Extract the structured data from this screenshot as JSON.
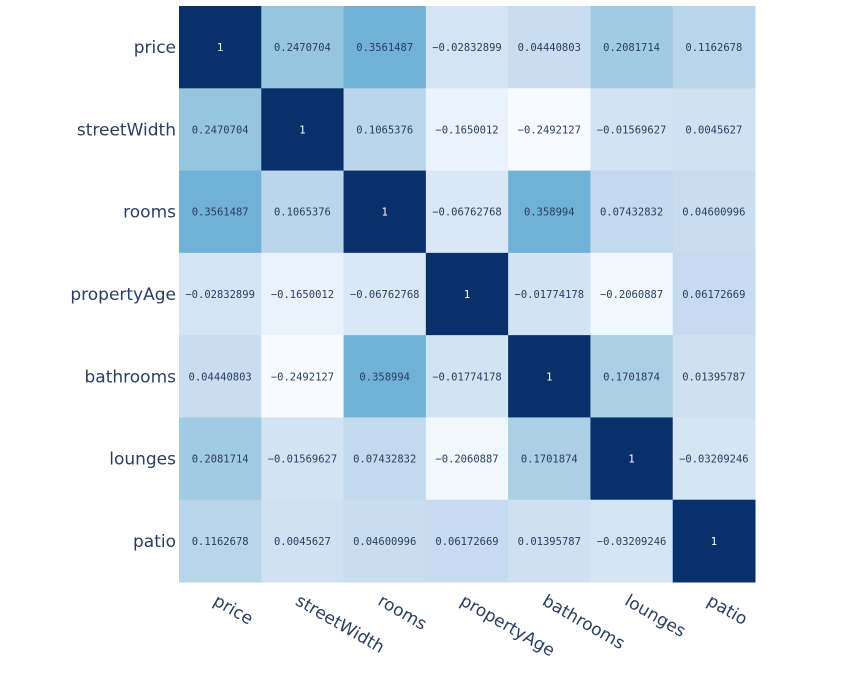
{
  "chart_data": {
    "type": "heatmap",
    "title": "",
    "colorscale": "Blues",
    "colorscale_stops": [
      "#f7fbff",
      "#deebf7",
      "#c6dbef",
      "#9ecae1",
      "#6baed6",
      "#4292c6",
      "#2171b5",
      "#08519c",
      "#08306b"
    ],
    "zmin": -0.2492127,
    "zmax": 1,
    "labels": [
      "price",
      "streetWidth",
      "rooms",
      "propertyAge",
      "bathrooms",
      "lounges",
      "patio"
    ],
    "values": [
      [
        1,
        0.2470704,
        0.3561487,
        -0.02832899,
        0.04440803,
        0.2081714,
        0.1162678
      ],
      [
        0.2470704,
        1,
        0.1065376,
        -0.1650012,
        -0.2492127,
        -0.01569627,
        0.0045627
      ],
      [
        0.3561487,
        0.1065376,
        1,
        -0.06762768,
        0.358994,
        0.07432832,
        0.04600996
      ],
      [
        -0.02832899,
        -0.1650012,
        -0.06762768,
        1,
        -0.01774178,
        -0.2060887,
        0.06172669
      ],
      [
        0.04440803,
        -0.2492127,
        0.358994,
        -0.01774178,
        1,
        0.1701874,
        0.01395787
      ],
      [
        0.2081714,
        -0.01569627,
        0.07432832,
        -0.2060887,
        0.1701874,
        1,
        -0.03209246
      ],
      [
        0.1162678,
        0.0045627,
        0.04600996,
        0.06172669,
        0.01395787,
        -0.03209246,
        1
      ]
    ],
    "text": [
      [
        "1",
        "0.2470704",
        "0.3561487",
        "−0.02832899",
        "0.04440803",
        "0.2081714",
        "0.1162678"
      ],
      [
        "0.2470704",
        "1",
        "0.1065376",
        "−0.1650012",
        "−0.2492127",
        "−0.01569627",
        "0.0045627"
      ],
      [
        "0.3561487",
        "0.1065376",
        "1",
        "−0.06762768",
        "0.358994",
        "0.07432832",
        "0.04600996"
      ],
      [
        "−0.02832899",
        "−0.1650012",
        "−0.06762768",
        "1",
        "−0.01774178",
        "−0.2060887",
        "0.06172669"
      ],
      [
        "0.04440803",
        "−0.2492127",
        "0.358994",
        "−0.01774178",
        "1",
        "0.1701874",
        "0.01395787"
      ],
      [
        "0.2081714",
        "−0.01569627",
        "0.07432832",
        "−0.2060887",
        "0.1701874",
        "1",
        "−0.03209246"
      ],
      [
        "0.1162678",
        "0.0045627",
        "0.04600996",
        "0.06172669",
        "0.01395787",
        "−0.03209246",
        "1"
      ]
    ],
    "x_tick_angle_deg": 30,
    "legend": "none",
    "grid": false
  }
}
